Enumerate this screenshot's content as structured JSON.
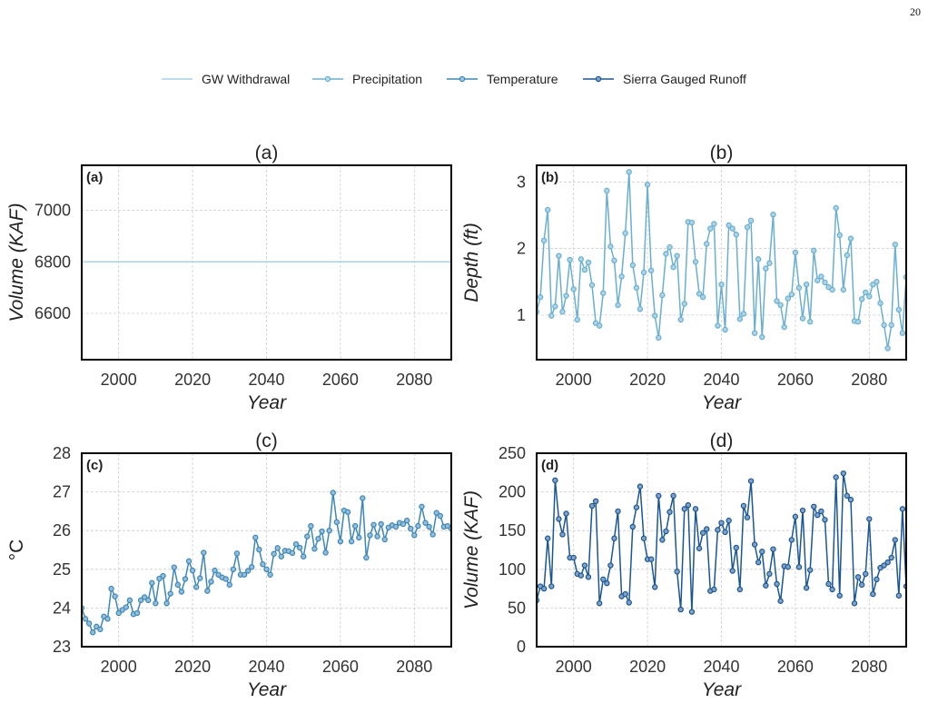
{
  "page_number": "20",
  "legend": {
    "items": [
      {
        "label": "GW Withdrawal",
        "color": "#a6d3e6",
        "marker": false
      },
      {
        "label": "Precipitation",
        "color": "#6aafd0",
        "marker": true
      },
      {
        "label": "Temperature",
        "color": "#3d87b8",
        "marker": true
      },
      {
        "label": "Sierra Gauged Runoff",
        "color": "#1a5694",
        "marker": true
      }
    ]
  },
  "chart_data": [
    {
      "type": "line",
      "panel_label": "(a)",
      "title": "(a)",
      "xlabel": "Year",
      "ylabel": "Volume (KAF)",
      "xlim": [
        1990,
        2090
      ],
      "ylim": [
        6420,
        7175
      ],
      "xticks": [
        2000,
        2020,
        2040,
        2060,
        2080
      ],
      "yticks": [
        6600,
        6800,
        7000
      ],
      "grid": true,
      "color": "#a6d3e6",
      "markers": false,
      "series": [
        {
          "name": "GW Withdrawal",
          "x": [
            1990,
            2090
          ],
          "values": [
            6800,
            6800
          ]
        }
      ]
    },
    {
      "type": "line",
      "panel_label": "(b)",
      "title": "(b)",
      "xlabel": "Year",
      "ylabel": "Depth (ft)",
      "xlim": [
        1990,
        2090
      ],
      "ylim": [
        0.33,
        3.25
      ],
      "xticks": [
        2000,
        2020,
        2040,
        2060,
        2080
      ],
      "yticks": [
        1,
        2,
        3
      ],
      "grid": true,
      "color": "#6aafd0",
      "markers": true,
      "series": [
        {
          "name": "Precipitation",
          "x_start": 1990,
          "values": [
            1.05,
            1.27,
            2.12,
            2.58,
            0.99,
            1.13,
            1.89,
            1.05,
            1.29,
            1.83,
            1.39,
            0.93,
            1.84,
            1.68,
            1.79,
            1.45,
            0.88,
            0.84,
            1.33,
            2.87,
            2.03,
            1.82,
            1.15,
            1.58,
            2.23,
            3.15,
            1.75,
            1.41,
            1.09,
            1.64,
            2.96,
            1.67,
            0.99,
            0.66,
            1.3,
            1.92,
            2.02,
            1.72,
            1.89,
            0.93,
            1.17,
            2.4,
            2.39,
            1.8,
            1.32,
            1.27,
            2.07,
            2.3,
            2.37,
            0.84,
            1.46,
            0.78,
            2.35,
            2.3,
            2.21,
            0.94,
            1.02,
            2.32,
            2.42,
            0.73,
            1.84,
            0.67,
            1.7,
            1.78,
            2.51,
            1.21,
            1.15,
            0.82,
            1.25,
            1.31,
            1.94,
            1.41,
            0.95,
            1.46,
            0.9,
            1.97,
            1.52,
            1.58,
            1.49,
            1.42,
            1.38,
            2.61,
            2.2,
            1.38,
            1.9,
            2.15,
            0.91,
            0.9,
            1.24,
            1.34,
            1.28,
            1.46,
            1.5,
            1.18,
            0.85,
            0.5,
            0.85,
            2.06,
            1.08,
            0.73,
            1.57
          ]
        }
      ]
    },
    {
      "type": "line",
      "panel_label": "(c)",
      "title": "(c)",
      "xlabel": "Year",
      "ylabel": "°C",
      "xlim": [
        1990,
        2090
      ],
      "ylim": [
        23,
        28
      ],
      "xticks": [
        2000,
        2020,
        2040,
        2060,
        2080
      ],
      "yticks": [
        23,
        24,
        25,
        26,
        27,
        28
      ],
      "grid": true,
      "color": "#3d87b8",
      "markers": true,
      "series": [
        {
          "name": "Temperature",
          "x_start": 1990,
          "values": [
            24.0,
            23.72,
            23.6,
            23.37,
            23.52,
            23.45,
            23.78,
            23.72,
            24.5,
            24.3,
            23.87,
            23.95,
            24.02,
            24.2,
            23.84,
            23.87,
            24.2,
            24.28,
            24.2,
            24.65,
            24.12,
            24.76,
            24.83,
            24.12,
            24.37,
            25.05,
            24.6,
            24.42,
            24.75,
            25.21,
            24.97,
            24.54,
            24.77,
            25.43,
            24.44,
            24.68,
            24.97,
            24.86,
            24.79,
            24.75,
            24.6,
            25.0,
            25.41,
            24.86,
            24.86,
            24.96,
            25.06,
            25.82,
            25.51,
            25.13,
            25.0,
            24.86,
            25.4,
            25.55,
            25.33,
            25.48,
            25.47,
            25.42,
            25.65,
            25.56,
            25.33,
            25.85,
            26.12,
            25.53,
            25.79,
            25.98,
            25.43,
            26.0,
            26.98,
            26.22,
            25.72,
            26.52,
            26.48,
            25.72,
            26.12,
            25.82,
            26.84,
            25.3,
            25.88,
            26.15,
            25.85,
            26.17,
            25.77,
            26.08,
            26.14,
            26.1,
            26.2,
            26.17,
            26.26,
            26.05,
            25.88,
            26.12,
            26.62,
            26.2,
            26.1,
            25.9,
            26.46,
            26.38,
            26.1,
            26.12,
            26.05
          ]
        }
      ]
    },
    {
      "type": "line",
      "panel_label": "(d)",
      "title": "(d)",
      "xlabel": "Year",
      "ylabel": "Volume (KAF)",
      "xlim": [
        1990,
        2090
      ],
      "ylim": [
        0,
        250
      ],
      "xticks": [
        2000,
        2020,
        2040,
        2060,
        2080
      ],
      "yticks": [
        0,
        50,
        100,
        150,
        200,
        250
      ],
      "grid": true,
      "color": "#1a5694",
      "markers": true,
      "series": [
        {
          "name": "Sierra Gauged Runoff",
          "x_start": 1990,
          "values": [
            60,
            78,
            75,
            140,
            78,
            215,
            165,
            145,
            172,
            115,
            115,
            94,
            92,
            105,
            90,
            182,
            188,
            56,
            87,
            82,
            105,
            140,
            175,
            65,
            68,
            57,
            155,
            180,
            207,
            140,
            113,
            113,
            77,
            195,
            138,
            149,
            174,
            195,
            97,
            48,
            178,
            183,
            45,
            178,
            127,
            147,
            152,
            72,
            74,
            151,
            160,
            148,
            163,
            98,
            128,
            74,
            182,
            167,
            214,
            132,
            109,
            123,
            79,
            94,
            126,
            81,
            59,
            104,
            103,
            138,
            168,
            103,
            176,
            76,
            99,
            181,
            170,
            175,
            164,
            81,
            74,
            219,
            66,
            224,
            195,
            190,
            56,
            90,
            80,
            94,
            165,
            68,
            87,
            102,
            105,
            109,
            115,
            138,
            66,
            178,
            78
          ]
        }
      ]
    }
  ]
}
